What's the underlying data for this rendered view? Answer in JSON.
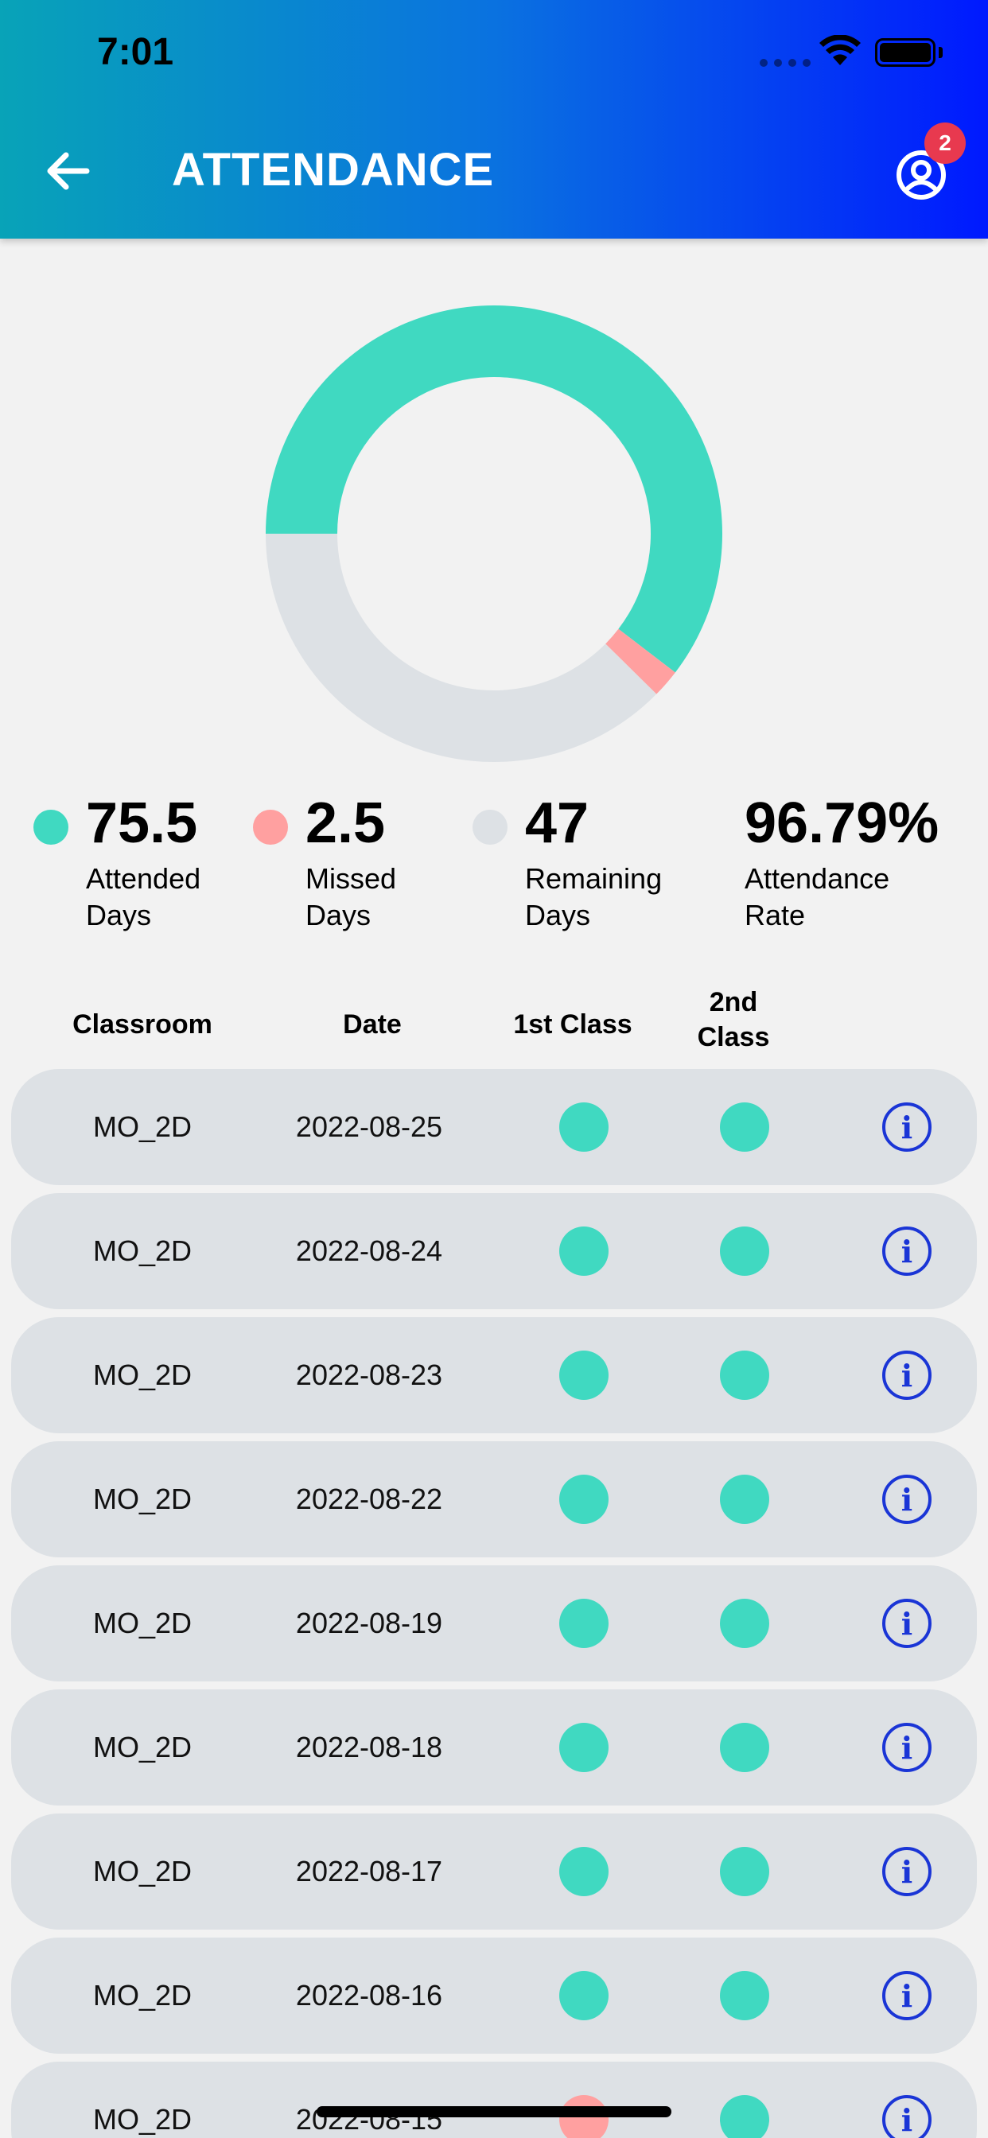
{
  "status_bar": {
    "time": "7:01"
  },
  "header": {
    "title": "ATTENDANCE",
    "notification_count": "2"
  },
  "colors": {
    "attended": "#40d9c1",
    "missed": "#ffa0a0",
    "remaining": "#dde1e5",
    "info": "#1a35d6"
  },
  "chart_data": {
    "type": "pie",
    "categories": [
      "Attended Days",
      "Missed Days",
      "Remaining Days"
    ],
    "values": [
      75.5,
      2.5,
      47
    ]
  },
  "stats": {
    "attended": {
      "value": "75.5",
      "label_line1": "Attended",
      "label_line2": "Days"
    },
    "missed": {
      "value": "2.5",
      "label_line1": "Missed",
      "label_line2": "Days"
    },
    "remaining": {
      "value": "47",
      "label_line1": "Remaining",
      "label_line2": "Days"
    },
    "rate": {
      "value": "96.79%",
      "label_line1": "Attendance",
      "label_line2": "Rate"
    }
  },
  "table": {
    "headers": {
      "classroom": "Classroom",
      "date": "Date",
      "first_class": "1st Class",
      "second_class_line1": "2nd",
      "second_class_line2": "Class"
    },
    "rows": [
      {
        "classroom": "MO_2D",
        "date": "2022-08-25",
        "first": "attended",
        "second": "attended"
      },
      {
        "classroom": "MO_2D",
        "date": "2022-08-24",
        "first": "attended",
        "second": "attended"
      },
      {
        "classroom": "MO_2D",
        "date": "2022-08-23",
        "first": "attended",
        "second": "attended"
      },
      {
        "classroom": "MO_2D",
        "date": "2022-08-22",
        "first": "attended",
        "second": "attended"
      },
      {
        "classroom": "MO_2D",
        "date": "2022-08-19",
        "first": "attended",
        "second": "attended"
      },
      {
        "classroom": "MO_2D",
        "date": "2022-08-18",
        "first": "attended",
        "second": "attended"
      },
      {
        "classroom": "MO_2D",
        "date": "2022-08-17",
        "first": "attended",
        "second": "attended"
      },
      {
        "classroom": "MO_2D",
        "date": "2022-08-16",
        "first": "attended",
        "second": "attended"
      },
      {
        "classroom": "MO_2D",
        "date": "2022-08-15",
        "first": "missed",
        "second": "attended"
      }
    ]
  },
  "icons": {
    "back": "arrow-left-icon",
    "profile": "user-circle-icon",
    "info": "info-icon",
    "wifi": "wifi-icon",
    "battery": "battery-icon"
  }
}
